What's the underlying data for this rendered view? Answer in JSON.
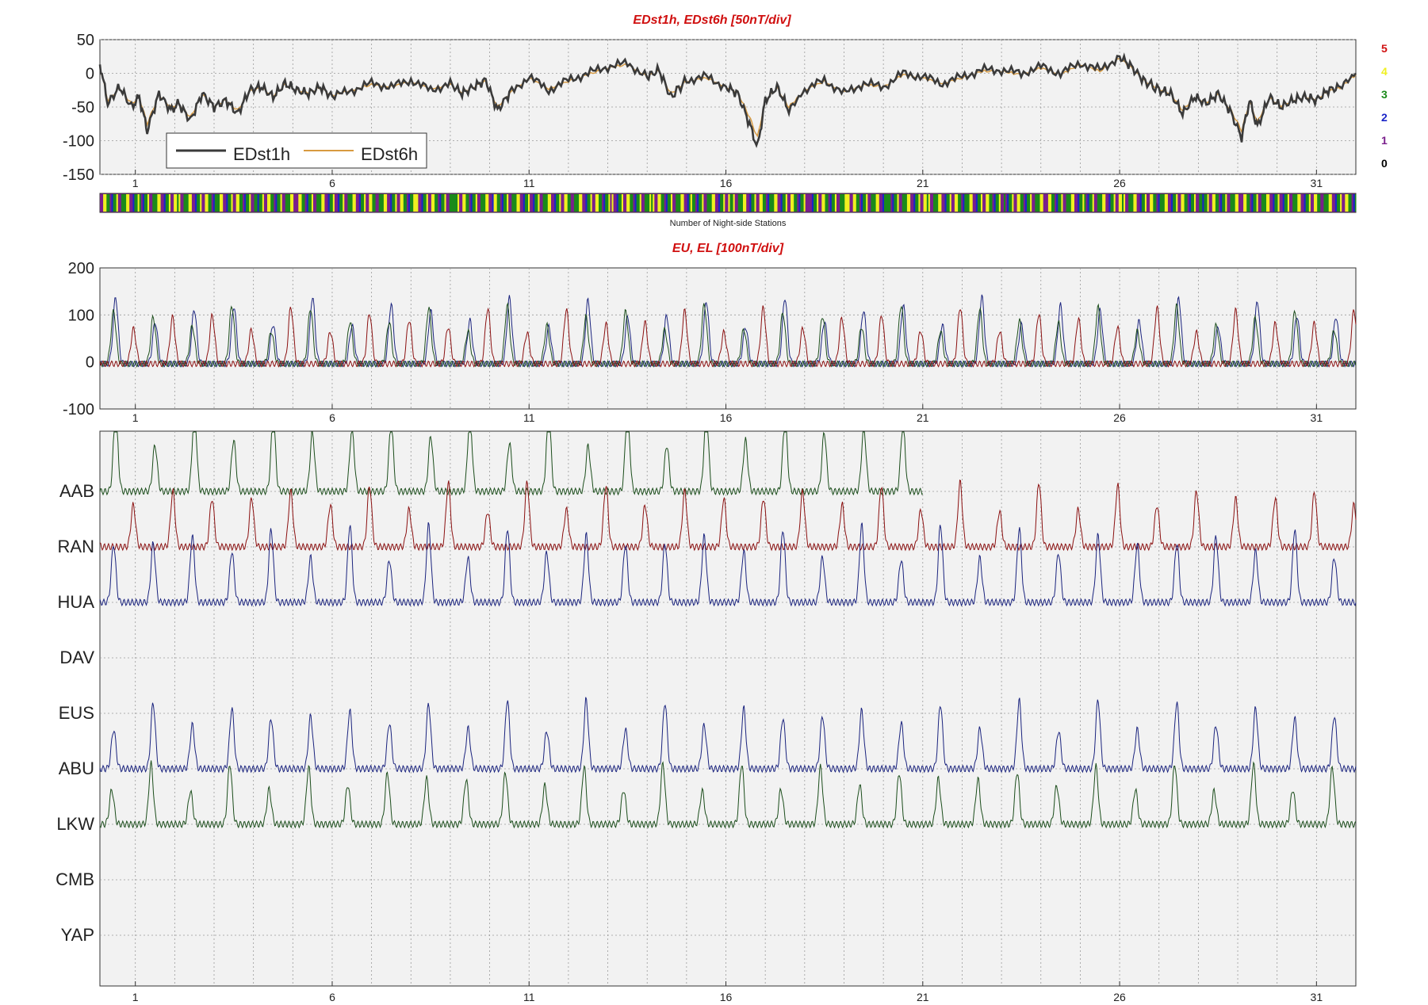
{
  "chart_data": [
    {
      "type": "line",
      "title": "EDst1h, EDst6h [50nT/div]",
      "ylim": [
        -150,
        50
      ],
      "xlim": [
        0.1,
        32
      ],
      "y_ticks": [
        "50",
        "0",
        "-50",
        "-100",
        "-150"
      ],
      "y_tick_values": [
        50,
        0,
        -50,
        -100,
        -150
      ],
      "x_ticks": [
        "1",
        "6",
        "11",
        "16",
        "21",
        "26",
        "31"
      ],
      "x_tick_values": [
        1,
        6,
        11,
        16,
        21,
        26,
        31
      ],
      "grid": true,
      "legend_position": "bottom-left",
      "series": [
        {
          "name": "EDst1h",
          "color": "#3a3a3a",
          "x": [
            0.1,
            0.3,
            0.6,
            0.9,
            1.1,
            1.3,
            1.6,
            1.9,
            2.1,
            2.4,
            2.7,
            3.0,
            3.3,
            3.6,
            3.9,
            4.2,
            4.5,
            4.8,
            5.1,
            5.4,
            5.7,
            6.0,
            6.5,
            7.0,
            7.5,
            8.0,
            8.5,
            9.0,
            9.3,
            9.6,
            9.9,
            10.2,
            10.5,
            11.0,
            11.5,
            12.0,
            12.5,
            13.0,
            13.5,
            14.0,
            14.3,
            14.6,
            15.0,
            15.5,
            16.0,
            16.3,
            16.6,
            16.8,
            17.0,
            17.3,
            17.6,
            18.0,
            18.5,
            19.0,
            19.5,
            20.0,
            20.5,
            21.0,
            21.5,
            22.0,
            22.5,
            23.0,
            23.5,
            24.0,
            24.5,
            25.0,
            25.5,
            26.0,
            26.3,
            26.6,
            27.0,
            27.3,
            27.6,
            27.9,
            28.2,
            28.5,
            28.8,
            29.1,
            29.3,
            29.5,
            29.8,
            30.1,
            30.4,
            30.7,
            31.0,
            31.3,
            31.6,
            32.0
          ],
          "y": [
            15,
            -45,
            -20,
            -50,
            -35,
            -85,
            -30,
            -55,
            -45,
            -70,
            -30,
            -50,
            -40,
            -60,
            -25,
            -20,
            -35,
            -15,
            -25,
            -30,
            -20,
            -35,
            -25,
            -15,
            -20,
            -10,
            -25,
            -15,
            -30,
            -20,
            -10,
            -55,
            -30,
            -5,
            -25,
            -10,
            0,
            10,
            15,
            -5,
            5,
            -35,
            -10,
            -5,
            -20,
            -30,
            -75,
            -110,
            -40,
            -20,
            -55,
            -25,
            -10,
            -30,
            -15,
            -20,
            0,
            -5,
            -15,
            -5,
            5,
            5,
            0,
            10,
            0,
            15,
            5,
            25,
            10,
            -10,
            -25,
            -30,
            -60,
            -35,
            -45,
            -30,
            -55,
            -95,
            -40,
            -80,
            -35,
            -50,
            -40,
            -35,
            -40,
            -25,
            -20,
            0
          ]
        },
        {
          "name": "EDst6h",
          "color": "#d89a40",
          "x": [
            0.1,
            0.3,
            0.6,
            0.9,
            1.1,
            1.3,
            1.6,
            1.9,
            2.1,
            2.4,
            2.7,
            3.0,
            3.3,
            3.6,
            3.9,
            4.2,
            4.5,
            4.8,
            5.1,
            5.4,
            5.7,
            6.0,
            6.5,
            7.0,
            7.5,
            8.0,
            8.5,
            9.0,
            9.3,
            9.6,
            9.9,
            10.2,
            10.5,
            11.0,
            11.5,
            12.0,
            12.5,
            13.0,
            13.5,
            14.0,
            14.3,
            14.6,
            15.0,
            15.5,
            16.0,
            16.3,
            16.6,
            16.8,
            17.0,
            17.3,
            17.6,
            18.0,
            18.5,
            19.0,
            19.5,
            20.0,
            20.5,
            21.0,
            21.5,
            22.0,
            22.5,
            23.0,
            23.5,
            24.0,
            24.5,
            25.0,
            25.5,
            26.0,
            26.3,
            26.6,
            27.0,
            27.3,
            27.6,
            27.9,
            28.2,
            28.5,
            28.8,
            29.1,
            29.3,
            29.5,
            29.8,
            30.1,
            30.4,
            30.7,
            31.0,
            31.3,
            31.6,
            32.0
          ],
          "y": [
            10,
            -40,
            -22,
            -45,
            -35,
            -75,
            -32,
            -50,
            -45,
            -65,
            -32,
            -48,
            -40,
            -55,
            -27,
            -22,
            -33,
            -17,
            -25,
            -28,
            -22,
            -33,
            -25,
            -17,
            -20,
            -12,
            -23,
            -17,
            -28,
            -20,
            -12,
            -50,
            -30,
            -7,
            -23,
            -12,
            -2,
            8,
            13,
            -5,
            3,
            -30,
            -12,
            -7,
            -20,
            -28,
            -65,
            -95,
            -40,
            -22,
            -50,
            -25,
            -12,
            -28,
            -17,
            -20,
            -2,
            -7,
            -15,
            -7,
            3,
            3,
            -2,
            8,
            -2,
            13,
            3,
            22,
            8,
            -10,
            -23,
            -30,
            -55,
            -35,
            -43,
            -32,
            -52,
            -85,
            -42,
            -72,
            -37,
            -48,
            -40,
            -35,
            -38,
            -27,
            -22,
            -2
          ]
        }
      ]
    },
    {
      "type": "heatmap",
      "xlabel": "Number of Night-side Stations",
      "legend_values": [
        "5",
        "4",
        "3",
        "2",
        "1",
        "0"
      ],
      "colors": {
        "0": "#000000",
        "1": "#7a1f8c",
        "2": "#1a24c8",
        "3": "#1a8a1a",
        "4": "#f0f020",
        "5": "#d01010"
      },
      "segments_per_day": 24,
      "pattern": [
        1,
        1,
        4,
        4,
        3,
        3,
        1,
        2,
        3,
        3,
        4,
        1,
        1,
        3,
        3,
        3,
        4,
        4,
        1,
        1,
        2,
        3,
        3,
        4
      ]
    },
    {
      "type": "line",
      "title": "EU, EL   [100nT/div]",
      "ylim": [
        -100,
        200
      ],
      "xlim": [
        0.1,
        32
      ],
      "y_ticks": [
        "200",
        "100",
        "0",
        "-100"
      ],
      "y_tick_values": [
        200,
        100,
        0,
        -100
      ],
      "x_ticks": [
        "1",
        "6",
        "11",
        "16",
        "21",
        "26",
        "31"
      ],
      "x_tick_values": [
        1,
        6,
        11,
        16,
        21,
        26,
        31
      ],
      "grid": true,
      "series": [
        {
          "color": "#1a237e",
          "peak": 130,
          "phase": 0.0
        },
        {
          "color": "#1b4d1b",
          "peak": 115,
          "phase": 0.05
        },
        {
          "color": "#8b1010",
          "peak": 110,
          "phase": 0.55
        }
      ]
    },
    {
      "type": "line",
      "station_labels": [
        "AAB",
        "RAN",
        "HUA",
        "DAV",
        "EUS",
        "ABU",
        "LKW",
        "CMB",
        "YAP"
      ],
      "x_ticks": [
        "1",
        "6",
        "11",
        "16",
        "21",
        "26",
        "31"
      ],
      "x_tick_values": [
        1,
        6,
        11,
        16,
        21,
        26,
        31
      ],
      "xlim": [
        0.1,
        32
      ],
      "grid": true,
      "series": [
        {
          "station": "AAB",
          "color": "#1b4d1b",
          "amplitude": 95,
          "phase": 0.0,
          "end_day": 21.0
        },
        {
          "station": "RAN",
          "color": "#8b1010",
          "amplitude": 75,
          "phase": 0.55,
          "end_day": 32.0
        },
        {
          "station": "HUA",
          "color": "#1a237e",
          "amplitude": 90,
          "phase": 0.05,
          "end_day": 32.0
        },
        {
          "station": "ABU",
          "color": "#1a237e",
          "amplitude": 80,
          "phase": 0.05,
          "end_day": 32.0
        },
        {
          "station": "LKW",
          "color": "#1b4d1b",
          "amplitude": 70,
          "phase": 0.1,
          "end_day": 32.0
        }
      ]
    }
  ]
}
